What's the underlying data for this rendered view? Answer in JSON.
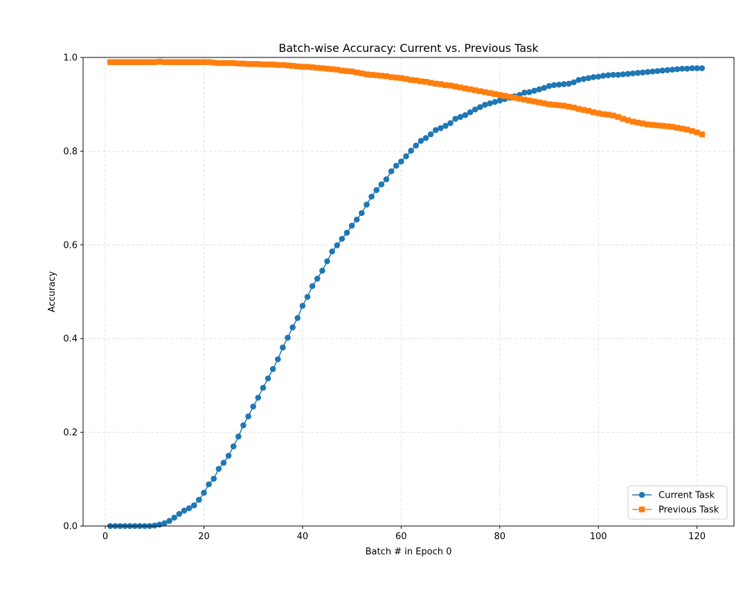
{
  "chart_data": {
    "type": "line",
    "title": "Batch-wise Accuracy: Current vs. Previous Task",
    "xlabel": "Batch # in Epoch 0",
    "ylabel": "Accuracy",
    "xlim": [
      -4.5,
      127.5
    ],
    "ylim": [
      0.0,
      1.0
    ],
    "xticks": [
      0,
      20,
      40,
      60,
      80,
      100,
      120
    ],
    "yticks": [
      0.0,
      0.2,
      0.4,
      0.6,
      0.8,
      1.0
    ],
    "xtick_labels": [
      "0",
      "20",
      "40",
      "60",
      "80",
      "100",
      "120"
    ],
    "ytick_labels": [
      "0.0",
      "0.2",
      "0.4",
      "0.6",
      "0.8",
      "1.0"
    ],
    "grid": true,
    "legend_position": "lower-right",
    "series": [
      {
        "name": "Current Task",
        "color": "#1f77b4",
        "marker": "circle",
        "x_start": 1,
        "values": [
          0.0,
          0.0,
          0.0,
          0.0,
          0.0,
          0.0,
          0.0,
          0.0,
          0.0,
          0.001,
          0.003,
          0.006,
          0.011,
          0.018,
          0.026,
          0.033,
          0.038,
          0.044,
          0.056,
          0.071,
          0.089,
          0.101,
          0.122,
          0.135,
          0.15,
          0.17,
          0.191,
          0.215,
          0.234,
          0.255,
          0.274,
          0.295,
          0.315,
          0.335,
          0.356,
          0.381,
          0.402,
          0.424,
          0.444,
          0.47,
          0.489,
          0.512,
          0.528,
          0.545,
          0.565,
          0.586,
          0.599,
          0.613,
          0.626,
          0.641,
          0.654,
          0.668,
          0.686,
          0.703,
          0.717,
          0.729,
          0.74,
          0.757,
          0.769,
          0.778,
          0.789,
          0.801,
          0.812,
          0.822,
          0.828,
          0.836,
          0.845,
          0.849,
          0.854,
          0.86,
          0.869,
          0.873,
          0.877,
          0.883,
          0.889,
          0.894,
          0.899,
          0.902,
          0.905,
          0.908,
          0.911,
          0.914,
          0.917,
          0.92,
          0.925,
          0.926,
          0.929,
          0.932,
          0.935,
          0.939,
          0.941,
          0.942,
          0.943,
          0.944,
          0.947,
          0.952,
          0.954,
          0.956,
          0.958,
          0.959,
          0.961,
          0.962,
          0.963,
          0.963,
          0.964,
          0.965,
          0.966,
          0.967,
          0.968,
          0.969,
          0.97,
          0.971,
          0.972,
          0.973,
          0.974,
          0.975,
          0.976,
          0.976,
          0.977,
          0.977,
          0.977
        ]
      },
      {
        "name": "Previous Task",
        "color": "#ff7f0e",
        "marker": "square",
        "x_start": 1,
        "values": [
          0.99,
          0.99,
          0.99,
          0.99,
          0.99,
          0.99,
          0.99,
          0.99,
          0.99,
          0.99,
          0.991,
          0.99,
          0.99,
          0.99,
          0.99,
          0.99,
          0.99,
          0.99,
          0.99,
          0.99,
          0.99,
          0.989,
          0.988,
          0.988,
          0.988,
          0.988,
          0.987,
          0.987,
          0.986,
          0.986,
          0.986,
          0.985,
          0.985,
          0.985,
          0.984,
          0.984,
          0.983,
          0.982,
          0.981,
          0.98,
          0.98,
          0.979,
          0.978,
          0.977,
          0.976,
          0.975,
          0.974,
          0.972,
          0.971,
          0.97,
          0.968,
          0.966,
          0.964,
          0.963,
          0.962,
          0.961,
          0.96,
          0.958,
          0.957,
          0.956,
          0.954,
          0.952,
          0.951,
          0.949,
          0.948,
          0.946,
          0.944,
          0.943,
          0.941,
          0.94,
          0.938,
          0.936,
          0.934,
          0.932,
          0.93,
          0.928,
          0.926,
          0.924,
          0.922,
          0.92,
          0.918,
          0.916,
          0.914,
          0.912,
          0.91,
          0.908,
          0.906,
          0.904,
          0.902,
          0.9,
          0.899,
          0.898,
          0.897,
          0.895,
          0.893,
          0.89,
          0.888,
          0.886,
          0.883,
          0.881,
          0.879,
          0.878,
          0.876,
          0.873,
          0.869,
          0.866,
          0.863,
          0.861,
          0.859,
          0.857,
          0.856,
          0.855,
          0.854,
          0.853,
          0.852,
          0.85,
          0.848,
          0.846,
          0.843,
          0.84,
          0.836
        ]
      }
    ]
  }
}
